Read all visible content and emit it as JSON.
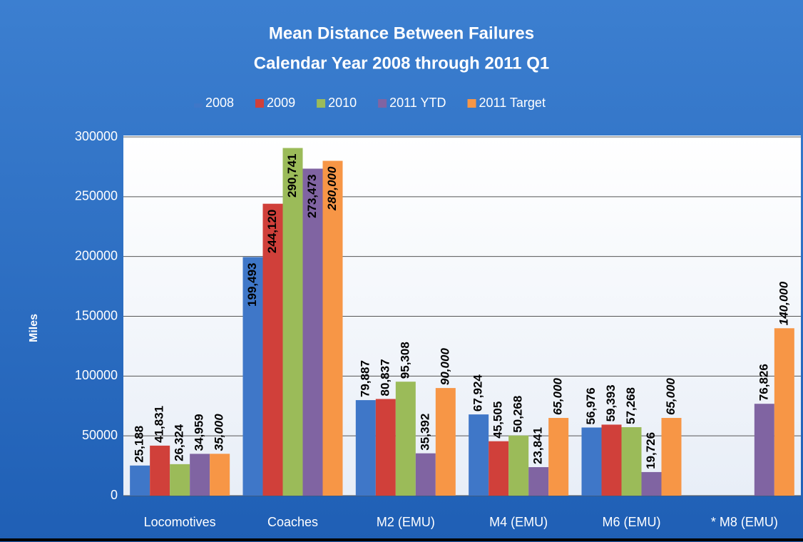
{
  "chart_data": {
    "type": "bar",
    "title": "Mean Distance Between Failures",
    "subtitle": "Calendar Year 2008 through 2011 Q1",
    "y_label": "Miles",
    "categories": [
      "Locomotives",
      "Coaches",
      "M2 (EMU)",
      "M4 (EMU)",
      "M6 (EMU)",
      "* M8 (EMU)"
    ],
    "series": [
      {
        "name": "2008",
        "color": "#3f77c8",
        "values": [
          25188,
          199493,
          79887,
          67924,
          56976,
          null
        ],
        "value_labels": [
          "25,188",
          "199,493",
          "79,887",
          "67,924",
          "56,976",
          null
        ]
      },
      {
        "name": "2009",
        "color": "#d0403a",
        "values": [
          41831,
          244120,
          80837,
          45505,
          59393,
          null
        ],
        "value_labels": [
          "41,831",
          "244,120",
          "80,837",
          "45,505",
          "59,393",
          null
        ]
      },
      {
        "name": "2010",
        "color": "#9bbb59",
        "values": [
          26324,
          290741,
          95308,
          50268,
          57268,
          null
        ],
        "value_labels": [
          "26,324",
          "290,741",
          "95,308",
          "50,268",
          "57,268",
          null
        ]
      },
      {
        "name": "2011 YTD",
        "color": "#8064a2",
        "values": [
          34959,
          273473,
          35392,
          23841,
          19726,
          76826
        ],
        "value_labels": [
          "34,959",
          "273,473",
          "35,392",
          "23,841",
          "19,726",
          "76,826"
        ]
      },
      {
        "name": "2011 Target",
        "color": "#f79646",
        "values": [
          35000,
          280000,
          90000,
          65000,
          65000,
          140000
        ],
        "value_labels": [
          "35,000",
          "280,000",
          "90,000",
          "65,000",
          "65,000",
          "140,000"
        ]
      }
    ],
    "ylim": [
      0,
      300000
    ],
    "yticks": [
      0,
      50000,
      100000,
      150000,
      200000,
      250000,
      300000
    ],
    "grid": true,
    "legend": "top"
  }
}
